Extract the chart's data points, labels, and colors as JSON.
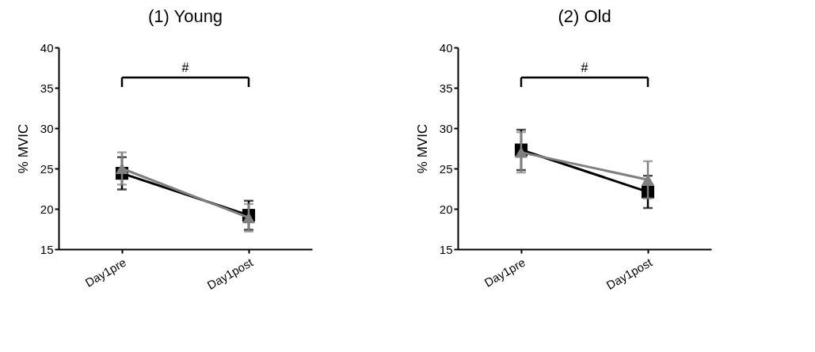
{
  "chart_data": [
    {
      "type": "line",
      "title": "(1) Young",
      "ylabel": "% MVIC",
      "categories": [
        "Day1pre",
        "Day1post"
      ],
      "ylim": [
        15,
        40
      ],
      "yticks": [
        15,
        20,
        25,
        30,
        35,
        40
      ],
      "grid": false,
      "line_style": "solid",
      "annotations": [
        "#"
      ],
      "series": [
        {
          "color": "#000000",
          "marker": "square",
          "values": [
            24.4,
            19.2
          ],
          "errors": [
            2.0,
            1.8
          ]
        },
        {
          "color": "#808080",
          "marker": "triangle",
          "values": [
            25.0,
            18.9
          ],
          "errors": [
            2.0,
            1.7
          ]
        }
      ]
    },
    {
      "type": "line",
      "title": "(2) Old",
      "ylabel": "% MVIC",
      "categories": [
        "Day1pre",
        "Day1post"
      ],
      "ylim": [
        15,
        40
      ],
      "yticks": [
        15,
        20,
        25,
        30,
        35,
        40
      ],
      "grid": false,
      "line_style": "solid",
      "annotations": [
        "#"
      ],
      "series": [
        {
          "color": "#000000",
          "marker": "square",
          "values": [
            27.3,
            22.1
          ],
          "errors": [
            2.5,
            2.0
          ]
        },
        {
          "color": "#808080",
          "marker": "triangle",
          "values": [
            27.0,
            23.6
          ],
          "errors": [
            2.5,
            2.3
          ]
        }
      ]
    }
  ]
}
